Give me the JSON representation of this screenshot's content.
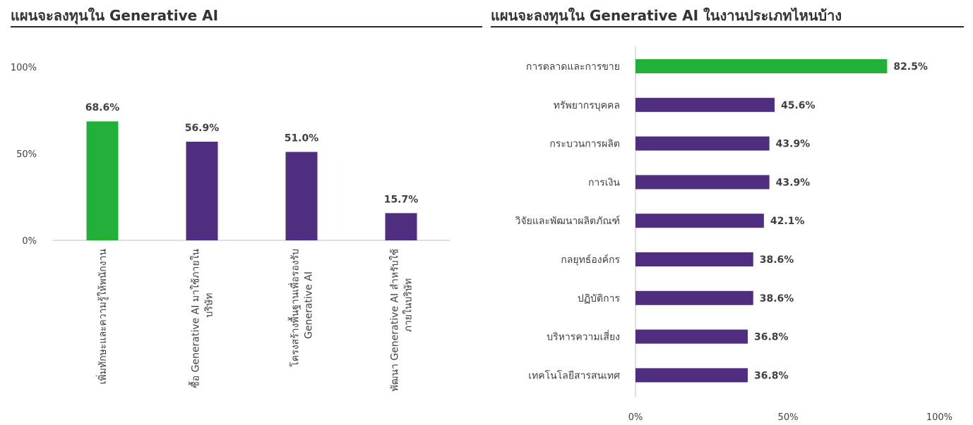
{
  "chart_data": [
    {
      "type": "bar",
      "orientation": "vertical",
      "title": "แผนจะลงทุนใน Generative AI",
      "categories": [
        [
          "เพิ่มทักษะและความรู้ให้พนักงาน"
        ],
        [
          "ซื้อ Generative AI มาใช้ภายใน",
          "บริษัท"
        ],
        [
          "โครงสร้างพื้นฐานเพื่อรองรับ",
          "Generative AI"
        ],
        [
          "พัฒนา Generative AI สำหรับใช้",
          "ภายในบริษัท"
        ]
      ],
      "values": [
        68.6,
        56.9,
        51.0,
        15.7
      ],
      "data_labels": [
        "68.6%",
        "56.9%",
        "51.0%",
        "15.7%"
      ],
      "highlight_index": 0,
      "ylim": [
        0,
        100
      ],
      "yticks": [
        "0%",
        "50%",
        "100%"
      ],
      "grid": false
    },
    {
      "type": "bar",
      "orientation": "horizontal",
      "title": "แผนจะลงทุนใน Generative AI ในงานประเภทไหนบ้าง",
      "categories": [
        "การตลาดและการขาย",
        "ทรัพยากรบุคคล",
        "กระบวนการผลิต",
        "การเงิน",
        "วิจัยและพัฒนาผลิตภัณฑ์",
        "กลยุทธ์องค์กร",
        "ปฏิบัติการ",
        "บริหารความเสี่ยง",
        "เทคโนโลยีสารสนเทศ"
      ],
      "values": [
        82.5,
        45.6,
        43.9,
        43.9,
        42.1,
        38.6,
        38.6,
        36.8,
        36.8
      ],
      "data_labels": [
        "82.5%",
        "45.6%",
        "43.9%",
        "43.9%",
        "42.1%",
        "38.6%",
        "38.6%",
        "36.8%",
        "36.8%"
      ],
      "highlight_index": 0,
      "xlim": [
        0,
        100
      ],
      "xticks": [
        "0%",
        "50%",
        "100%"
      ],
      "grid": false
    }
  ],
  "colors": {
    "highlight": "#22b03a",
    "bar": "#4f2d7f",
    "axis": "#bfbfbf",
    "text": "#404040"
  }
}
